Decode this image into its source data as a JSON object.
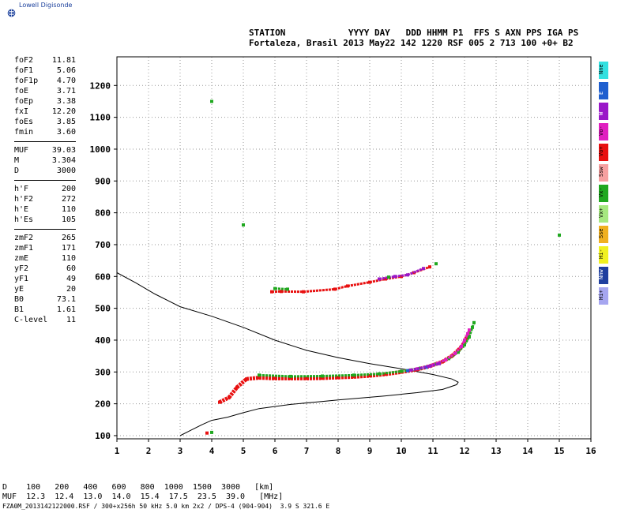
{
  "logo": {
    "text": "Lowell Digisonde",
    "icon": "globe-icon"
  },
  "header": {
    "line1": "STATION            YYYY DAY   DDD HHMM P1  FFS S AXN PPS IGA PS",
    "line2": "Fortaleza, Brasil 2013 May22 142 1220 RSF 005 2 713 100 +0+ B2"
  },
  "parameters": {
    "group1": [
      {
        "name": "foF2",
        "value": "11.81"
      },
      {
        "name": "foF1",
        "value": "5.06"
      },
      {
        "name": "foF1p",
        "value": "4.70"
      },
      {
        "name": "foE",
        "value": "3.71"
      },
      {
        "name": "foEp",
        "value": "3.38"
      },
      {
        "name": "fxI",
        "value": "12.20"
      },
      {
        "name": "foEs",
        "value": "3.85"
      },
      {
        "name": "fmin",
        "value": "3.60"
      }
    ],
    "group2": [
      {
        "name": "MUF",
        "value": "39.03"
      },
      {
        "name": "M",
        "value": "3.304"
      },
      {
        "name": "D",
        "value": "3000"
      }
    ],
    "group3": [
      {
        "name": "h'F",
        "value": "200"
      },
      {
        "name": "h'F2",
        "value": "272"
      },
      {
        "name": "h'E",
        "value": "110"
      },
      {
        "name": "h'Es",
        "value": "105"
      }
    ],
    "group4": [
      {
        "name": "zmF2",
        "value": "265"
      },
      {
        "name": "zmF1",
        "value": "171"
      },
      {
        "name": "zmE",
        "value": "110"
      },
      {
        "name": "yF2",
        "value": "60"
      },
      {
        "name": "yF1",
        "value": "49"
      },
      {
        "name": "yE",
        "value": "20"
      },
      {
        "name": "B0",
        "value": "73.1"
      },
      {
        "name": "B1",
        "value": "1.61"
      },
      {
        "name": "C-level",
        "value": "11"
      }
    ]
  },
  "legend": [
    {
      "label": "Nne",
      "color": "#33e0e0"
    },
    {
      "label": "E",
      "color": "#1f5fcf"
    },
    {
      "label": "W",
      "color": "#9a18c8"
    },
    {
      "label": "Vo-",
      "color": "#e020c0"
    },
    {
      "label": "Vo+",
      "color": "#e81010"
    },
    {
      "label": "Ssw",
      "color": "#f6a0a0"
    },
    {
      "label": "Vx-",
      "color": "#20a820"
    },
    {
      "label": "Vx+",
      "color": "#a6e880"
    },
    {
      "label": "Sse",
      "color": "#f0b020"
    },
    {
      "label": "Hi-",
      "color": "#f0f020"
    },
    {
      "label": "Nnw",
      "color": "#1f3f9f"
    },
    {
      "label": "Hi+",
      "color": "#a6a6f0"
    }
  ],
  "bottom": {
    "d_row": "D    100   200   400   600   800  1000  1500  3000   [km]",
    "muf_row": "MUF  12.3  12.4  13.0  14.0  15.4  17.5  23.5  39.0   [MHz]",
    "footer": "FZA0M_2013142122000.RSF / 300+x256h 50 kHz 5.0 km 2x2 / DPS-4 (904-904)  3.9 S 321.6 E"
  },
  "chart_data": {
    "type": "scatter",
    "xlim": [
      1,
      16
    ],
    "ylim": [
      90,
      1290
    ],
    "x_ticks": [
      1,
      2,
      3,
      4,
      5,
      6,
      7,
      8,
      9,
      10,
      11,
      12,
      13,
      14,
      15,
      16
    ],
    "y_ticks": [
      100,
      200,
      300,
      400,
      500,
      600,
      700,
      800,
      900,
      1000,
      1100,
      1200
    ],
    "grid": "dotted",
    "profile": [
      [
        3.0,
        100
      ],
      [
        3.3,
        115
      ],
      [
        3.7,
        135
      ],
      [
        4.0,
        148
      ],
      [
        4.5,
        158
      ],
      [
        5.0,
        172
      ],
      [
        5.5,
        185
      ],
      [
        6.5,
        198
      ],
      [
        8,
        212
      ],
      [
        9.5,
        225
      ],
      [
        10.5,
        235
      ],
      [
        11.3,
        245
      ],
      [
        11.75,
        260
      ],
      [
        11.8,
        268
      ],
      [
        11.6,
        278
      ],
      [
        11.0,
        292
      ],
      [
        10.0,
        310
      ],
      [
        9.0,
        326
      ],
      [
        8.0,
        345
      ],
      [
        7.0,
        368
      ],
      [
        6.0,
        400
      ],
      [
        5.0,
        440
      ],
      [
        4.0,
        475
      ],
      [
        3.0,
        505
      ],
      [
        2.2,
        545
      ],
      [
        1.6,
        580
      ],
      [
        1.0,
        612
      ]
    ],
    "traces": [
      {
        "color": "#e81010",
        "points": [
          [
            3.85,
            108
          ],
          [
            4.25,
            205
          ],
          [
            4.55,
            220
          ],
          [
            4.8,
            252
          ],
          [
            5.1,
            278
          ],
          [
            5.5,
            282
          ],
          [
            6,
            280
          ],
          [
            6.5,
            280
          ],
          [
            7,
            280
          ],
          [
            7.5,
            281
          ],
          [
            8,
            283
          ],
          [
            8.5,
            285
          ],
          [
            9,
            288
          ],
          [
            9.5,
            293
          ],
          [
            10,
            300
          ],
          [
            10.5,
            308
          ],
          [
            10.9,
            318
          ],
          [
            11.3,
            332
          ],
          [
            11.6,
            350
          ],
          [
            11.8,
            368
          ],
          [
            11.95,
            385
          ],
          [
            12.05,
            405
          ],
          [
            12.15,
            425
          ]
        ]
      },
      {
        "color": "#20a820",
        "points": [
          [
            4.0,
            110
          ],
          [
            5.5,
            290
          ],
          [
            6.5,
            286
          ],
          [
            7.5,
            287
          ],
          [
            8.5,
            290
          ],
          [
            9.3,
            294
          ],
          [
            10,
            302
          ],
          [
            10.6,
            312
          ],
          [
            11.1,
            325
          ],
          [
            11.5,
            342
          ],
          [
            11.8,
            362
          ],
          [
            12.0,
            385
          ],
          [
            12.15,
            410
          ],
          [
            12.25,
            440
          ],
          [
            12.3,
            455
          ]
        ]
      },
      {
        "color": "#e020c0",
        "points": [
          [
            10.5,
            310
          ],
          [
            11.0,
            322
          ],
          [
            11.4,
            338
          ],
          [
            11.7,
            358
          ],
          [
            11.9,
            380
          ],
          [
            12.0,
            400
          ],
          [
            12.1,
            420
          ],
          [
            12.15,
            432
          ]
        ]
      },
      {
        "color": "#1f5fcf",
        "points": [
          [
            10.2,
            304
          ],
          [
            10.8,
            315
          ]
        ]
      },
      {
        "color": "#9a18c8",
        "points": [
          [
            10.3,
            306
          ],
          [
            10.9,
            318
          ],
          [
            11.2,
            326
          ]
        ]
      },
      {
        "color": "#e81010",
        "points": [
          [
            5.9,
            552
          ],
          [
            6.2,
            553
          ],
          [
            6.9,
            552
          ],
          [
            7.9,
            560
          ],
          [
            8.3,
            570
          ],
          [
            9.0,
            582
          ],
          [
            9.5,
            592
          ],
          [
            10.0,
            600
          ],
          [
            10.4,
            612
          ],
          [
            10.9,
            630
          ]
        ]
      },
      {
        "color": "#9a18c8",
        "points": [
          [
            9.3,
            592
          ],
          [
            9.8,
            600
          ],
          [
            10.2,
            605
          ],
          [
            10.7,
            625
          ]
        ]
      },
      {
        "color": "#20a820",
        "points": [
          [
            6.0,
            562
          ],
          [
            6.4,
            560
          ],
          [
            9.6,
            598
          ],
          [
            11.1,
            640
          ],
          [
            15.0,
            730
          ],
          [
            4.0,
            1150
          ],
          [
            5.0,
            762
          ]
        ]
      }
    ]
  }
}
